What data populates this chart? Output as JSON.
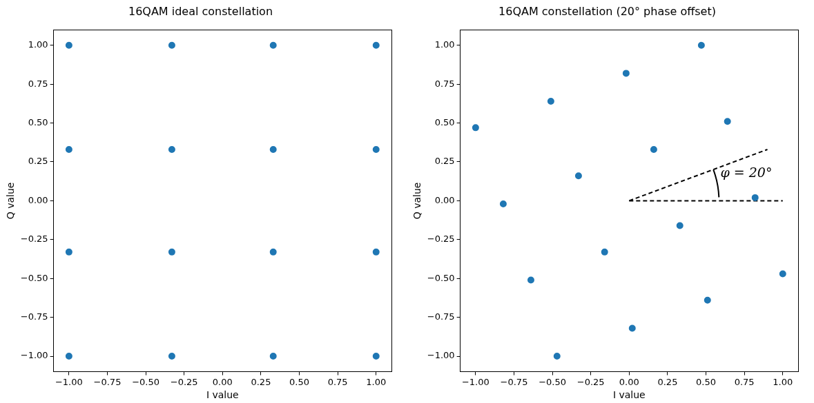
{
  "chart_data": [
    {
      "type": "scatter",
      "title": "16QAM ideal constellation",
      "xlabel": "I value",
      "ylabel": "Q value",
      "series": [
        {
          "color": "#1f77b4",
          "x": [
            -1,
            -1,
            -1,
            -1,
            -0.33,
            -0.33,
            -0.33,
            -0.33,
            0.33,
            0.33,
            0.33,
            0.33,
            1,
            1,
            1,
            1
          ],
          "values": [
            1,
            0.33,
            -0.33,
            -1,
            1,
            0.33,
            -0.33,
            -1,
            1,
            0.33,
            -0.33,
            -1,
            1,
            0.33,
            -0.33,
            -1
          ]
        }
      ],
      "xlim": [
        -1.1,
        1.1
      ],
      "ylim": [
        -1.1,
        1.1
      ],
      "xticks": [
        {
          "value": -1,
          "label": "−1.00"
        },
        {
          "value": -0.75,
          "label": "−0.75"
        },
        {
          "value": -0.5,
          "label": "−0.50"
        },
        {
          "value": -0.25,
          "label": "−0.25"
        },
        {
          "value": 0,
          "label": "0.00"
        },
        {
          "value": 0.25,
          "label": "0.25"
        },
        {
          "value": 0.5,
          "label": "0.50"
        },
        {
          "value": 0.75,
          "label": "0.75"
        },
        {
          "value": 1,
          "label": "1.00"
        }
      ],
      "yticks": [
        {
          "value": -1,
          "label": "−1.00"
        },
        {
          "value": -0.75,
          "label": "−0.75"
        },
        {
          "value": -0.5,
          "label": "−0.50"
        },
        {
          "value": -0.25,
          "label": "−0.25"
        },
        {
          "value": 0,
          "label": "0.00"
        },
        {
          "value": 0.25,
          "label": "0.25"
        },
        {
          "value": 0.5,
          "label": "0.50"
        },
        {
          "value": 0.75,
          "label": "0.75"
        },
        {
          "value": 1,
          "label": "1.00"
        }
      ],
      "marker": "circle",
      "grid": false,
      "legend": false
    },
    {
      "type": "scatter",
      "title": "16QAM constellation (20° phase offset)",
      "xlabel": "I value",
      "ylabel": "Q value",
      "series": [
        {
          "color": "#1f77b4",
          "x": [
            0.47,
            0.64,
            0.82,
            1.0,
            -0.02,
            0.16,
            0.33,
            0.51,
            -0.51,
            -0.33,
            -0.16,
            0.02,
            -1.0,
            -0.82,
            -0.64,
            -0.47
          ],
          "values": [
            1.0,
            0.51,
            0.02,
            -0.47,
            0.82,
            0.33,
            -0.16,
            -0.64,
            0.64,
            0.16,
            -0.33,
            -0.82,
            0.47,
            -0.02,
            -0.51,
            -1.0
          ]
        },
        {
          "type": "line",
          "color": "#000000",
          "line_style": "dashed",
          "marker": "none",
          "x": [
            0,
            1.0
          ],
          "values": [
            0,
            0
          ]
        },
        {
          "type": "line",
          "color": "#000000",
          "line_style": "dashed",
          "marker": "none",
          "x": [
            0,
            0.9
          ],
          "values": [
            0,
            0.33
          ]
        }
      ],
      "xlim": [
        -1.1,
        1.1
      ],
      "ylim": [
        -1.1,
        1.1
      ],
      "xticks": [
        {
          "value": -1,
          "label": "−1.00"
        },
        {
          "value": -0.75,
          "label": "−0.75"
        },
        {
          "value": -0.5,
          "label": "−0.50"
        },
        {
          "value": -0.25,
          "label": "−0.25"
        },
        {
          "value": 0,
          "label": "0.00"
        },
        {
          "value": 0.25,
          "label": "0.25"
        },
        {
          "value": 0.5,
          "label": "0.50"
        },
        {
          "value": 0.75,
          "label": "0.75"
        },
        {
          "value": 1,
          "label": "1.00"
        }
      ],
      "yticks": [
        {
          "value": -1,
          "label": "−1.00"
        },
        {
          "value": -0.75,
          "label": "−0.75"
        },
        {
          "value": -0.5,
          "label": "−0.50"
        },
        {
          "value": -0.25,
          "label": "−0.25"
        },
        {
          "value": 0,
          "label": "0.00"
        },
        {
          "value": 0.25,
          "label": "0.25"
        },
        {
          "value": 0.5,
          "label": "0.50"
        },
        {
          "value": 0.75,
          "label": "0.75"
        },
        {
          "value": 1,
          "label": "1.00"
        }
      ],
      "marker": "circle",
      "grid": false,
      "legend": false,
      "annotations": [
        "φ = 20°"
      ]
    }
  ]
}
